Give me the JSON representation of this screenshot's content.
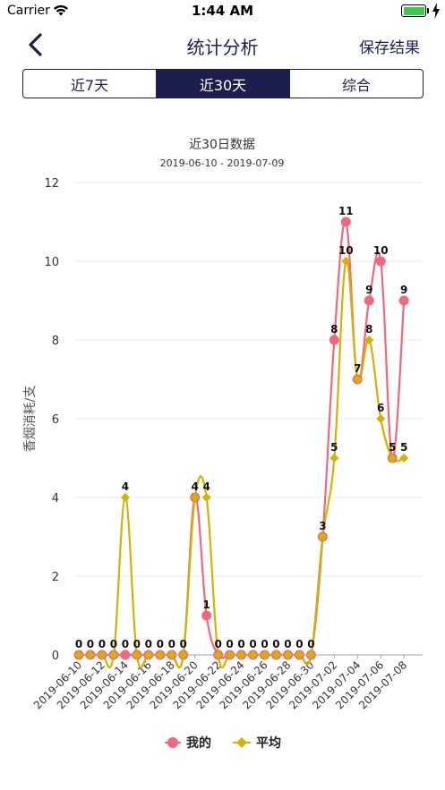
{
  "status": {
    "carrier": "Carrier",
    "time": "1:44 AM"
  },
  "nav": {
    "title": "统计分析",
    "save_label": "保存结果"
  },
  "tabs": [
    {
      "label": "近7天",
      "active": false
    },
    {
      "label": "近30天",
      "active": true
    },
    {
      "label": "综合",
      "active": false
    }
  ],
  "colors": {
    "accent": "#1b1f4d",
    "mine": "#f0677f",
    "average": "#d4b200"
  },
  "chart_data": {
    "type": "line",
    "title": "近30日数据",
    "subtitle": "2019-06-10 - 2019-07-09",
    "ylabel": "香烟消耗/支",
    "xlabel": "",
    "ylim": [
      0,
      12
    ],
    "yticks": [
      0,
      2,
      4,
      6,
      8,
      10,
      12
    ],
    "grid": true,
    "legend": "bottom",
    "x": [
      "2019-06-10",
      "2019-06-11",
      "2019-06-12",
      "2019-06-13",
      "2019-06-14",
      "2019-06-15",
      "2019-06-16",
      "2019-06-17",
      "2019-06-18",
      "2019-06-19",
      "2019-06-20",
      "2019-06-21",
      "2019-06-22",
      "2019-06-23",
      "2019-06-24",
      "2019-06-25",
      "2019-06-26",
      "2019-06-27",
      "2019-06-28",
      "2019-06-29",
      "2019-06-30",
      "2019-07-01",
      "2019-07-02",
      "2019-07-03",
      "2019-07-04",
      "2019-07-05",
      "2019-07-06",
      "2019-07-07",
      "2019-07-08",
      "2019-07-09"
    ],
    "xticks": [
      "2019-06-10",
      "2019-06-12",
      "2019-06-14",
      "2019-06-16",
      "2019-06-18",
      "2019-06-20",
      "2019-06-22",
      "2019-06-24",
      "2019-06-26",
      "2019-06-28",
      "2019-06-30",
      "2019-07-02",
      "2019-07-04",
      "2019-07-06",
      "2019-07-08"
    ],
    "series": [
      {
        "name": "我的",
        "values": [
          0,
          0,
          0,
          0,
          0,
          0,
          0,
          0,
          0,
          0,
          4,
          1,
          0,
          0,
          0,
          0,
          0,
          0,
          0,
          0,
          0,
          3,
          8,
          11,
          7,
          9,
          10,
          5,
          9,
          null
        ]
      },
      {
        "name": "平均",
        "values": [
          0,
          0,
          0,
          0,
          4,
          0,
          0,
          0,
          0,
          0,
          4,
          4,
          0,
          0,
          0,
          0,
          0,
          0,
          0,
          0,
          0,
          3,
          5,
          10,
          7,
          8,
          6,
          5,
          5,
          null
        ]
      }
    ]
  }
}
